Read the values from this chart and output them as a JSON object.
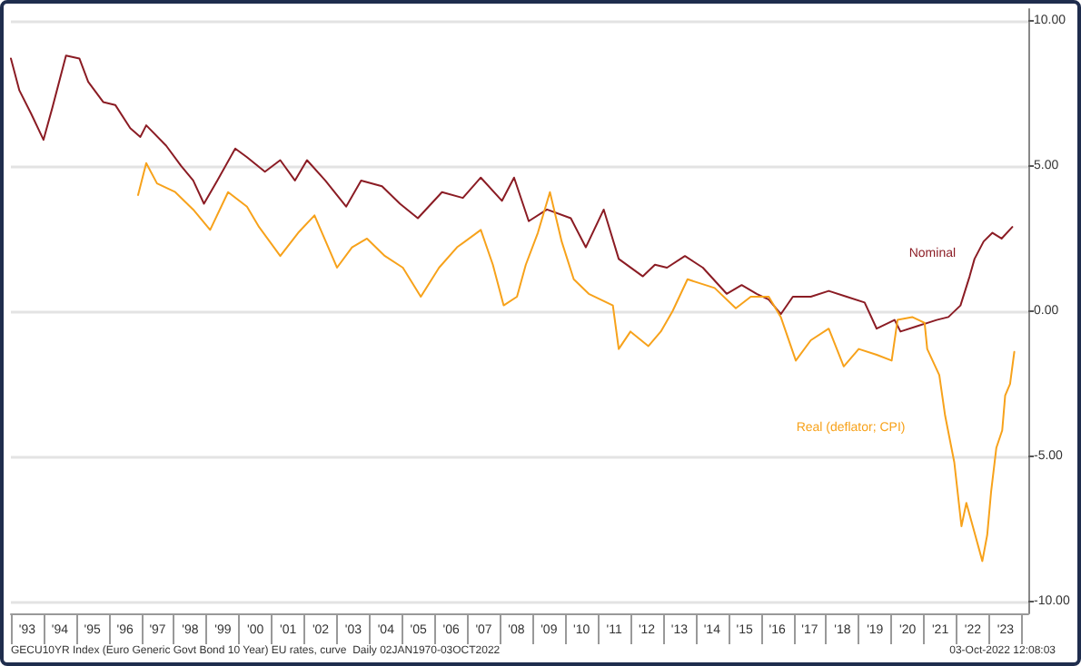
{
  "chart_data": {
    "type": "line",
    "annotations": [
      "GECU10YR Index (Euro Generic Govt Bond 10 Year) EU rates, curve  Daily 02JAN1970-03OCT2022",
      "03-Oct-2022 12:08:03"
    ],
    "xlim": [
      1992.5,
      2023.7
    ],
    "xticks": [
      {
        "value": 1993,
        "label": "'93"
      },
      {
        "value": 1994,
        "label": "'94"
      },
      {
        "value": 1995,
        "label": "'95"
      },
      {
        "value": 1996,
        "label": "'96"
      },
      {
        "value": 1997,
        "label": "'97"
      },
      {
        "value": 1998,
        "label": "'98"
      },
      {
        "value": 1999,
        "label": "'99"
      },
      {
        "value": 2000,
        "label": "'00"
      },
      {
        "value": 2001,
        "label": "'01"
      },
      {
        "value": 2002,
        "label": "'02"
      },
      {
        "value": 2003,
        "label": "'03"
      },
      {
        "value": 2004,
        "label": "'04"
      },
      {
        "value": 2005,
        "label": "'05"
      },
      {
        "value": 2006,
        "label": "'06"
      },
      {
        "value": 2007,
        "label": "'07"
      },
      {
        "value": 2008,
        "label": "'08"
      },
      {
        "value": 2009,
        "label": "'09"
      },
      {
        "value": 2010,
        "label": "'10"
      },
      {
        "value": 2011,
        "label": "'11"
      },
      {
        "value": 2012,
        "label": "'12"
      },
      {
        "value": 2013,
        "label": "'13"
      },
      {
        "value": 2014,
        "label": "'14"
      },
      {
        "value": 2015,
        "label": "'15"
      },
      {
        "value": 2016,
        "label": "'16"
      },
      {
        "value": 2017,
        "label": "'17"
      },
      {
        "value": 2018,
        "label": "'18"
      },
      {
        "value": 2019,
        "label": "'19"
      },
      {
        "value": 2020,
        "label": "'20"
      },
      {
        "value": 2021,
        "label": "'21"
      },
      {
        "value": 2022,
        "label": "'22"
      },
      {
        "value": 2023,
        "label": "'23"
      }
    ],
    "ylim": [
      -10.4,
      10.4
    ],
    "yticks": [
      {
        "value": -10,
        "label": "-10.00"
      },
      {
        "value": -5,
        "label": "-5.00"
      },
      {
        "value": 0,
        "label": "0.00"
      },
      {
        "value": 5,
        "label": "5.00"
      },
      {
        "value": 10,
        "label": "10.00"
      }
    ],
    "grid": "y",
    "series": [
      {
        "name": "Nominal",
        "color": "#8b1c24",
        "x": [
          1992.5,
          1992.76,
          1993.12,
          1993.5,
          1993.77,
          1994.19,
          1994.6,
          1994.87,
          1995.33,
          1995.7,
          1996.16,
          1996.47,
          1996.65,
          1997.26,
          1997.72,
          1998.09,
          1998.42,
          1998.83,
          1999.38,
          1999.74,
          2000.29,
          2000.76,
          2001.21,
          2001.58,
          2002.14,
          2002.78,
          2003.24,
          2003.88,
          2004.43,
          2004.98,
          2005.72,
          2006.36,
          2006.91,
          2007.56,
          2007.93,
          2008.38,
          2008.94,
          2009.67,
          2010.13,
          2010.68,
          2011.14,
          2011.88,
          2012.25,
          2012.62,
          2013.17,
          2013.72,
          2014.45,
          2014.91,
          2015.37,
          2015.74,
          2016.11,
          2016.48,
          2017.03,
          2017.58,
          2018.13,
          2018.68,
          2019.05,
          2019.6,
          2019.78,
          2020.33,
          2020.89,
          2021.25,
          2021.62,
          2021.9,
          2022.05,
          2022.33,
          2022.6,
          2022.88,
          2023.21
        ],
        "values": [
          8.7,
          7.6,
          6.8,
          5.9,
          7.0,
          8.8,
          8.7,
          7.9,
          7.2,
          7.1,
          6.3,
          6.0,
          6.4,
          5.7,
          5.0,
          4.5,
          3.7,
          4.5,
          5.6,
          5.3,
          4.8,
          5.2,
          4.5,
          5.2,
          4.5,
          3.6,
          4.5,
          4.3,
          3.7,
          3.2,
          4.1,
          3.9,
          4.6,
          3.8,
          4.6,
          3.1,
          3.5,
          3.2,
          2.2,
          3.5,
          1.8,
          1.2,
          1.6,
          1.5,
          1.9,
          1.5,
          0.6,
          0.9,
          0.6,
          0.4,
          -0.1,
          0.5,
          0.5,
          0.7,
          0.5,
          0.3,
          -0.6,
          -0.3,
          -0.7,
          -0.5,
          -0.3,
          -0.2,
          0.2,
          1.2,
          1.8,
          2.4,
          2.7,
          2.5,
          2.9
        ]
      },
      {
        "name": "Real (deflator; CPI)",
        "color": "#f7a21b",
        "x": [
          1996.4,
          1996.65,
          1996.98,
          1997.54,
          1998.09,
          1998.61,
          1999.16,
          1999.74,
          2000.11,
          2000.76,
          2001.31,
          2001.81,
          2002.5,
          2002.96,
          2003.42,
          2003.97,
          2004.52,
          2005.07,
          2005.63,
          2006.18,
          2006.91,
          2007.28,
          2007.61,
          2008.02,
          2008.29,
          2008.66,
          2009.03,
          2009.39,
          2009.76,
          2010.22,
          2010.96,
          2011.14,
          2011.5,
          2012.05,
          2012.43,
          2012.79,
          2013.25,
          2014.08,
          2014.73,
          2015.19,
          2015.74,
          2016.11,
          2016.57,
          2017.03,
          2017.58,
          2018.04,
          2018.5,
          2019.05,
          2019.51,
          2019.69,
          2020.14,
          2020.52,
          2020.6,
          2020.97,
          2021.15,
          2021.43,
          2021.65,
          2021.8,
          2022.07,
          2022.29,
          2022.44,
          2022.56,
          2022.72,
          2022.9,
          2022.99,
          2023.14,
          2023.27
        ],
        "values": [
          4.0,
          5.1,
          4.4,
          4.1,
          3.5,
          2.8,
          4.1,
          3.6,
          2.9,
          1.9,
          2.7,
          3.3,
          1.5,
          2.2,
          2.5,
          1.9,
          1.5,
          0.5,
          1.5,
          2.2,
          2.8,
          1.6,
          0.2,
          0.5,
          1.6,
          2.7,
          4.1,
          2.4,
          1.1,
          0.6,
          0.2,
          -1.3,
          -0.7,
          -1.2,
          -0.7,
          0.0,
          1.1,
          0.8,
          0.1,
          0.5,
          0.5,
          -0.2,
          -1.7,
          -1.0,
          -0.6,
          -1.9,
          -1.3,
          -1.5,
          -1.7,
          -0.3,
          -0.2,
          -0.4,
          -1.3,
          -2.2,
          -3.6,
          -5.2,
          -7.4,
          -6.6,
          -7.7,
          -8.6,
          -7.7,
          -6.2,
          -4.7,
          -4.1,
          -2.9,
          -2.5,
          -1.4
        ]
      }
    ]
  }
}
